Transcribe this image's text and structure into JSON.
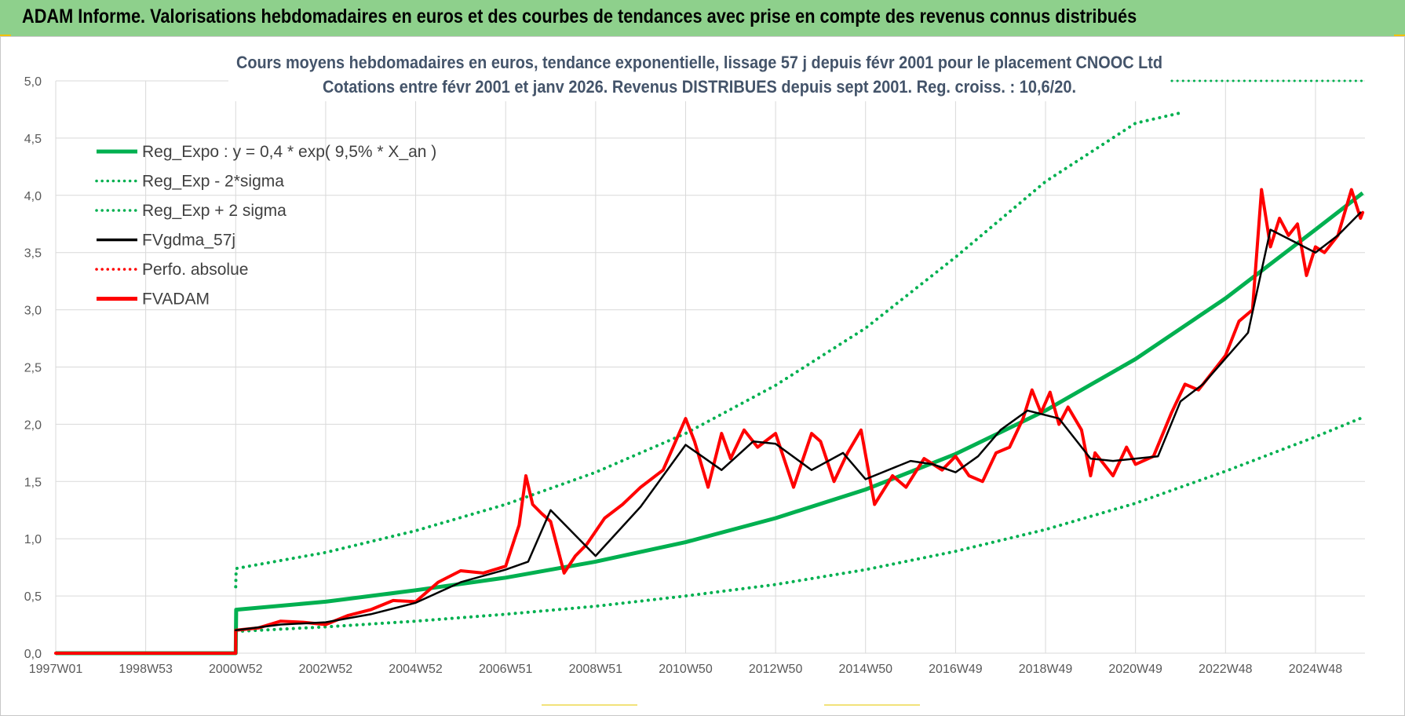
{
  "header": {
    "title": "ADAM Informe. Valorisations hebdomadaires en euros et des courbes de tendances avec prise en compte des revenus connus distribués",
    "background": "#8ed08c"
  },
  "chart_data": {
    "type": "line",
    "title_line1": "Cours moyens hebdomadaires en euros, tendance exponentielle, lissage 57 j depuis févr 2001 pour le placement CNOOC Ltd",
    "title_line2": "Cotations entre févr 2001 et janv 2026. Revenus DISTRIBUES depuis sept 2001. Reg. croiss. : 10,6/20.",
    "x_tick_labels": [
      "1997W01",
      "1998W53",
      "2000W52",
      "2002W52",
      "2004W52",
      "2006W51",
      "2008W51",
      "2010W50",
      "2012W50",
      "2014W50",
      "2016W49",
      "2018W49",
      "2020W49",
      "2022W48",
      "2024W48"
    ],
    "x_tick_years": [
      1997.0,
      1999.0,
      2001.0,
      2003.0,
      2005.0,
      2007.0,
      2009.0,
      2011.0,
      2013.0,
      2015.0,
      2017.0,
      2019.0,
      2021.0,
      2023.0,
      2025.0
    ],
    "x_range": [
      1997.0,
      2026.1
    ],
    "ylim": [
      0,
      5
    ],
    "y_ticks": [
      "0,0",
      "0,5",
      "1,0",
      "1,5",
      "2,0",
      "2,5",
      "3,0",
      "3,5",
      "4,0",
      "4,5",
      "5,0"
    ],
    "grid": true,
    "legend_position": "top-left",
    "legend": [
      {
        "label": "Reg_Expo : y = 0,4 * exp( 9,5% *  X_an )",
        "color": "#00b050",
        "style": "solid-thick"
      },
      {
        "label": "Reg_Exp - 2*sigma",
        "color": "#00b050",
        "style": "dotted"
      },
      {
        "label": "Reg_Exp + 2 sigma",
        "color": "#00b050",
        "style": "dotted"
      },
      {
        "label": "FVgdma_57j",
        "color": "#000000",
        "style": "solid"
      },
      {
        "label": "Perfo. absolue",
        "color": "#ff0000",
        "style": "dotted"
      },
      {
        "label": "FVADAM",
        "color": "#ff0000",
        "style": "solid-thick"
      }
    ],
    "series": [
      {
        "name": "Reg_Expo",
        "x": [
          1997.0,
          2001.0,
          2001.01,
          2003,
          2005,
          2007,
          2009,
          2011,
          2013,
          2015,
          2017,
          2019,
          2021,
          2023,
          2025,
          2026.05
        ],
        "values": [
          0,
          0,
          0.38,
          0.45,
          0.55,
          0.66,
          0.8,
          0.97,
          1.18,
          1.43,
          1.74,
          2.12,
          2.57,
          3.1,
          3.7,
          4.02
        ]
      },
      {
        "name": "Reg_Exp - 2*sigma",
        "x": [
          2001.01,
          2003,
          2005,
          2007,
          2009,
          2011,
          2013,
          2015,
          2017,
          2019,
          2021,
          2023,
          2025,
          2026.05
        ],
        "values": [
          0.19,
          0.23,
          0.28,
          0.34,
          0.41,
          0.5,
          0.6,
          0.73,
          0.89,
          1.08,
          1.31,
          1.59,
          1.89,
          2.06
        ]
      },
      {
        "name": "Reg_Exp + 2 sigma",
        "x": [
          2001.0,
          2001.01,
          2003,
          2005,
          2007,
          2009,
          2011,
          2013,
          2015,
          2017,
          2019,
          2021,
          2022.0
        ],
        "values": [
          0.58,
          0.74,
          0.88,
          1.07,
          1.3,
          1.58,
          1.92,
          2.34,
          2.84,
          3.46,
          4.12,
          4.63,
          4.72
        ]
      },
      {
        "name": "FVgdma_57j",
        "x": [
          2001.0,
          2002.0,
          2003.0,
          2004.0,
          2005.0,
          2006.0,
          2007.0,
          2007.5,
          2008.0,
          2009.0,
          2010.0,
          2011.0,
          2011.8,
          2012.5,
          2013.0,
          2013.8,
          2014.5,
          2015.0,
          2016.0,
          2016.5,
          2017.0,
          2017.5,
          2018.0,
          2018.6,
          2019.3,
          2020.0,
          2020.5,
          2021.5,
          2022.0,
          2022.5,
          2023.5,
          2024.0,
          2024.5,
          2025.0,
          2025.5,
          2026.0
        ],
        "values": [
          0.2,
          0.25,
          0.27,
          0.34,
          0.44,
          0.62,
          0.73,
          0.8,
          1.25,
          0.85,
          1.28,
          1.82,
          1.6,
          1.85,
          1.83,
          1.6,
          1.75,
          1.52,
          1.68,
          1.65,
          1.58,
          1.72,
          1.95,
          2.12,
          2.05,
          1.7,
          1.68,
          1.72,
          2.2,
          2.35,
          2.8,
          3.7,
          3.6,
          3.5,
          3.65,
          3.85
        ]
      },
      {
        "name": "FVADAM",
        "x": [
          1997.0,
          2001.0,
          2001.0,
          2001.5,
          2002.0,
          2002.5,
          2003.0,
          2003.5,
          2004.0,
          2004.5,
          2005.0,
          2005.5,
          2006.0,
          2006.5,
          2007.0,
          2007.3,
          2007.45,
          2007.6,
          2007.8,
          2008.0,
          2008.3,
          2008.55,
          2008.8,
          2009.2,
          2009.6,
          2010.0,
          2010.5,
          2011.0,
          2011.2,
          2011.5,
          2011.8,
          2012.0,
          2012.3,
          2012.6,
          2013.0,
          2013.4,
          2013.8,
          2014.0,
          2014.3,
          2014.6,
          2014.9,
          2015.2,
          2015.6,
          2015.9,
          2016.3,
          2016.7,
          2017.0,
          2017.3,
          2017.6,
          2017.9,
          2018.2,
          2018.5,
          2018.7,
          2018.9,
          2019.1,
          2019.3,
          2019.5,
          2019.8,
          2020.0,
          2020.1,
          2020.5,
          2020.8,
          2021.0,
          2021.4,
          2021.8,
          2022.1,
          2022.4,
          2022.7,
          2023.0,
          2023.3,
          2023.6,
          2023.8,
          2024.0,
          2024.2,
          2024.4,
          2024.6,
          2024.8,
          2025.0,
          2025.2,
          2025.5,
          2025.8,
          2026.0,
          2026.05
        ],
        "values": [
          0,
          0,
          0.2,
          0.22,
          0.28,
          0.27,
          0.25,
          0.33,
          0.38,
          0.46,
          0.45,
          0.62,
          0.72,
          0.7,
          0.76,
          1.12,
          1.55,
          1.3,
          1.22,
          1.15,
          0.7,
          0.85,
          0.95,
          1.18,
          1.3,
          1.45,
          1.6,
          2.05,
          1.85,
          1.45,
          1.92,
          1.7,
          1.95,
          1.8,
          1.92,
          1.45,
          1.92,
          1.85,
          1.5,
          1.75,
          1.95,
          1.3,
          1.55,
          1.45,
          1.7,
          1.6,
          1.72,
          1.55,
          1.5,
          1.75,
          1.8,
          2.05,
          2.3,
          2.1,
          2.28,
          2.0,
          2.15,
          1.95,
          1.55,
          1.75,
          1.55,
          1.8,
          1.65,
          1.72,
          2.1,
          2.35,
          2.3,
          2.45,
          2.6,
          2.9,
          3.0,
          4.05,
          3.55,
          3.8,
          3.65,
          3.75,
          3.3,
          3.55,
          3.5,
          3.65,
          4.05,
          3.8,
          3.85
        ]
      }
    ]
  }
}
